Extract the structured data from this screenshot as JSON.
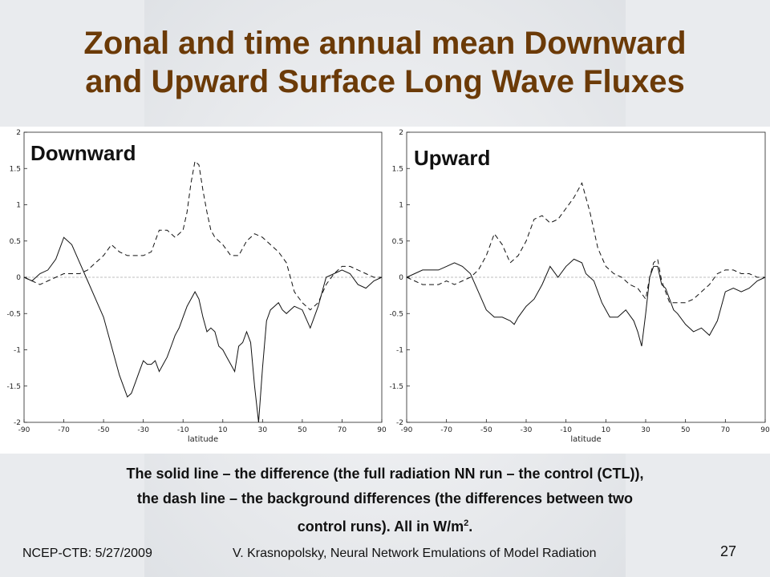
{
  "title_line1": "Zonal and time annual mean Downward",
  "title_line2": "and Upward Surface Long Wave Fluxes",
  "caption": {
    "line1": "The solid line – the difference (the full radiation NN run – the control (CTL)),",
    "line2": "the dash line – the background differences (the differences between two",
    "line3_main": "control runs).  All in W/m",
    "line3_sup": "2",
    "line3_end": "."
  },
  "footer": {
    "left": "NCEP-CTB: 5/27/2009",
    "center": "V. Krasnopolsky, Neural Network Emulations of Model Radiation",
    "page": "27"
  },
  "colors": {
    "title": "#6b3a07",
    "series_solid": "#111111",
    "series_dash": "#111111",
    "zero_line": "#aaaaaa"
  },
  "chart_data": [
    {
      "type": "line",
      "panel_label": "Downward",
      "xlabel": "latitude",
      "ylabel": "",
      "xlim": [
        -90,
        90
      ],
      "ylim": [
        -2,
        2
      ],
      "xticks": [
        -90,
        -70,
        -50,
        -30,
        -10,
        10,
        30,
        50,
        70,
        90
      ],
      "yticks": [
        2,
        1.5,
        1,
        0.5,
        0,
        -0.5,
        -1,
        -1.5,
        -2
      ],
      "series": [
        {
          "style": "solid",
          "x": [
            -90,
            -86,
            -82,
            -78,
            -74,
            -70,
            -66,
            -62,
            -58,
            -54,
            -50,
            -46,
            -42,
            -38,
            -36,
            -34,
            -32,
            -30,
            -28,
            -26,
            -24,
            -22,
            -20,
            -18,
            -16,
            -14,
            -12,
            -10,
            -8,
            -6,
            -4,
            -2,
            0,
            2,
            4,
            6,
            8,
            10,
            12,
            14,
            16,
            18,
            20,
            22,
            24,
            26,
            28,
            30,
            32,
            34,
            36,
            38,
            40,
            42,
            44,
            46,
            50,
            54,
            58,
            62,
            66,
            70,
            74,
            78,
            82,
            86,
            90
          ],
          "y": [
            0,
            -0.05,
            0.05,
            0.1,
            0.25,
            0.55,
            0.45,
            0.2,
            -0.05,
            -0.3,
            -0.55,
            -0.95,
            -1.35,
            -1.65,
            -1.6,
            -1.45,
            -1.3,
            -1.15,
            -1.2,
            -1.2,
            -1.15,
            -1.3,
            -1.2,
            -1.1,
            -0.95,
            -0.8,
            -0.7,
            -0.55,
            -0.4,
            -0.3,
            -0.2,
            -0.3,
            -0.55,
            -0.75,
            -0.7,
            -0.75,
            -0.95,
            -1.0,
            -1.1,
            -1.2,
            -1.3,
            -0.95,
            -0.9,
            -0.75,
            -0.9,
            -1.5,
            -2.0,
            -1.25,
            -0.6,
            -0.45,
            -0.4,
            -0.35,
            -0.45,
            -0.5,
            -0.45,
            -0.4,
            -0.45,
            -0.7,
            -0.4,
            0.0,
            0.05,
            0.1,
            0.05,
            -0.1,
            -0.15,
            -0.05,
            0.0
          ]
        },
        {
          "style": "dashed",
          "x": [
            -90,
            -86,
            -82,
            -78,
            -74,
            -70,
            -66,
            -62,
            -58,
            -54,
            -50,
            -46,
            -42,
            -38,
            -34,
            -30,
            -26,
            -22,
            -18,
            -14,
            -10,
            -8,
            -6,
            -4,
            -2,
            0,
            2,
            4,
            6,
            8,
            10,
            14,
            18,
            22,
            26,
            30,
            34,
            38,
            42,
            46,
            50,
            54,
            58,
            62,
            66,
            70,
            74,
            78,
            82,
            86,
            90
          ],
          "y": [
            0,
            -0.05,
            -0.1,
            -0.05,
            0.0,
            0.05,
            0.05,
            0.05,
            0.1,
            0.2,
            0.3,
            0.45,
            0.35,
            0.3,
            0.3,
            0.3,
            0.35,
            0.65,
            0.65,
            0.55,
            0.65,
            0.9,
            1.3,
            1.6,
            1.55,
            1.2,
            0.9,
            0.65,
            0.55,
            0.5,
            0.45,
            0.3,
            0.3,
            0.5,
            0.6,
            0.55,
            0.45,
            0.35,
            0.2,
            -0.2,
            -0.35,
            -0.45,
            -0.35,
            -0.1,
            0.05,
            0.15,
            0.15,
            0.1,
            0.05,
            0.0,
            0.0
          ]
        }
      ]
    },
    {
      "type": "line",
      "panel_label": "Upward",
      "xlabel": "latitude",
      "ylabel": "",
      "xlim": [
        -90,
        90
      ],
      "ylim": [
        -2,
        2
      ],
      "xticks": [
        -90,
        -70,
        -50,
        -30,
        -10,
        10,
        30,
        50,
        70,
        90
      ],
      "yticks": [
        2,
        1.5,
        1,
        0.5,
        0,
        -0.5,
        -1,
        -1.5,
        -2
      ],
      "series": [
        {
          "style": "solid",
          "x": [
            -90,
            -86,
            -82,
            -78,
            -74,
            -70,
            -66,
            -62,
            -58,
            -54,
            -50,
            -46,
            -42,
            -38,
            -36,
            -34,
            -30,
            -26,
            -22,
            -18,
            -14,
            -10,
            -6,
            -2,
            0,
            4,
            8,
            12,
            16,
            20,
            24,
            26,
            28,
            30,
            32,
            34,
            36,
            38,
            40,
            42,
            44,
            46,
            50,
            54,
            58,
            62,
            66,
            70,
            74,
            78,
            82,
            86,
            90
          ],
          "y": [
            0,
            0.05,
            0.1,
            0.1,
            0.1,
            0.15,
            0.2,
            0.15,
            0.05,
            -0.2,
            -0.45,
            -0.55,
            -0.55,
            -0.6,
            -0.65,
            -0.55,
            -0.4,
            -0.3,
            -0.1,
            0.15,
            0.0,
            0.15,
            0.25,
            0.2,
            0.05,
            -0.05,
            -0.35,
            -0.55,
            -0.55,
            -0.45,
            -0.6,
            -0.75,
            -0.95,
            -0.5,
            0.0,
            0.15,
            0.15,
            -0.1,
            -0.15,
            -0.3,
            -0.45,
            -0.5,
            -0.65,
            -0.75,
            -0.7,
            -0.8,
            -0.6,
            -0.2,
            -0.15,
            -0.2,
            -0.15,
            -0.05,
            0.0
          ]
        },
        {
          "style": "dashed",
          "x": [
            -90,
            -86,
            -82,
            -78,
            -74,
            -70,
            -66,
            -62,
            -58,
            -54,
            -50,
            -46,
            -42,
            -38,
            -34,
            -30,
            -26,
            -22,
            -18,
            -14,
            -10,
            -6,
            -2,
            2,
            6,
            10,
            14,
            18,
            22,
            26,
            30,
            32,
            34,
            36,
            38,
            40,
            42,
            46,
            50,
            54,
            58,
            62,
            66,
            70,
            74,
            78,
            82,
            86,
            90
          ],
          "y": [
            0,
            -0.05,
            -0.1,
            -0.1,
            -0.1,
            -0.05,
            -0.1,
            -0.05,
            0.0,
            0.1,
            0.3,
            0.6,
            0.45,
            0.2,
            0.3,
            0.5,
            0.8,
            0.85,
            0.75,
            0.8,
            0.95,
            1.1,
            1.3,
            0.9,
            0.4,
            0.15,
            0.05,
            0.0,
            -0.1,
            -0.15,
            -0.3,
            0.0,
            0.2,
            0.25,
            -0.05,
            -0.2,
            -0.35,
            -0.35,
            -0.35,
            -0.3,
            -0.2,
            -0.1,
            0.05,
            0.1,
            0.1,
            0.05,
            0.05,
            0.0,
            0.0
          ]
        }
      ]
    }
  ]
}
